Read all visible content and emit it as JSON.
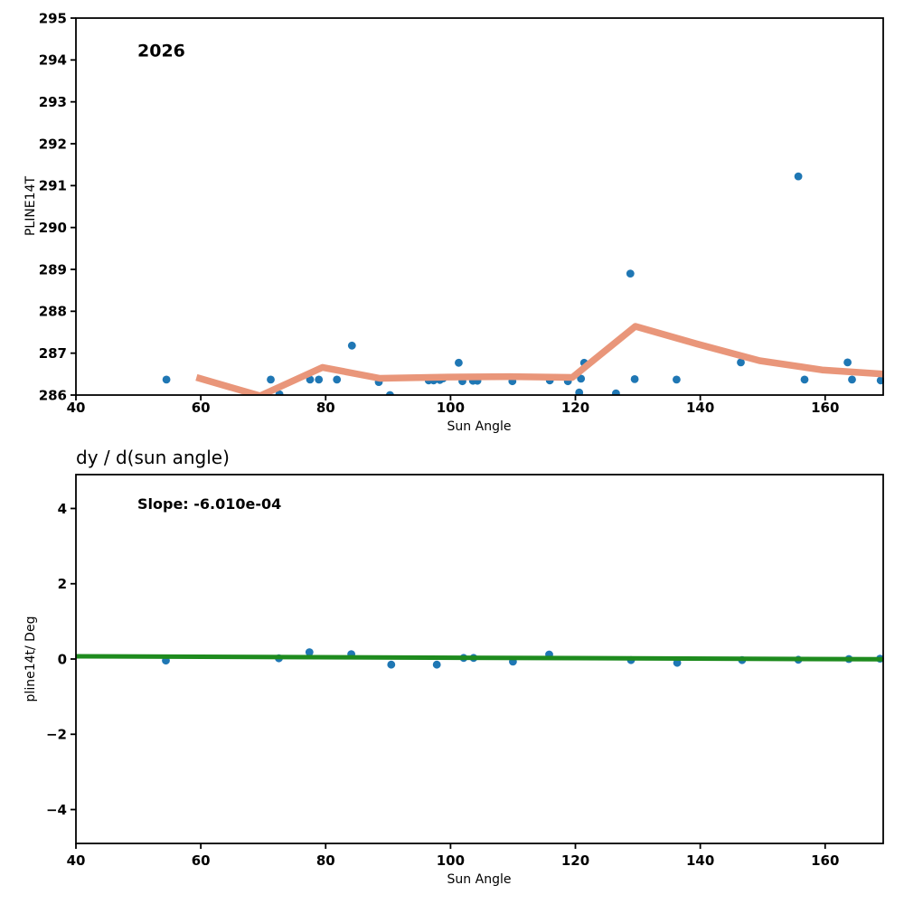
{
  "figure": {
    "background": "#ffffff",
    "text_color": "#000000"
  },
  "chart_data": [
    {
      "type": "scatter",
      "panel": "top",
      "annotation": "2026",
      "xlabel": "Sun Angle",
      "ylabel": "PLINE14T",
      "xlim": [
        40,
        169.3
      ],
      "ylim": [
        286,
        295
      ],
      "xticks": [
        40,
        60,
        80,
        100,
        120,
        140,
        160
      ],
      "yticks": [
        286,
        287,
        288,
        289,
        290,
        291,
        292,
        293,
        294,
        295
      ],
      "grid": false,
      "legend": "none",
      "series": [
        {
          "name": "pline14t-scatter",
          "type": "scatter",
          "color": "#1f77b4",
          "marker_radius": 4.4,
          "points": [
            [
              54.5,
              286.37
            ],
            [
              71.2,
              286.37
            ],
            [
              72.6,
              286.02
            ],
            [
              77.5,
              286.37
            ],
            [
              78.9,
              286.37
            ],
            [
              81.8,
              286.37
            ],
            [
              84.2,
              287.18
            ],
            [
              88.5,
              286.31
            ],
            [
              90.3,
              286.0
            ],
            [
              96.5,
              286.35
            ],
            [
              97.3,
              286.35
            ],
            [
              98.3,
              286.36
            ],
            [
              98.8,
              286.4
            ],
            [
              101.3,
              286.77
            ],
            [
              101.9,
              286.33
            ],
            [
              103.6,
              286.34
            ],
            [
              104.3,
              286.34
            ],
            [
              109.9,
              286.33
            ],
            [
              115.9,
              286.35
            ],
            [
              118.8,
              286.33
            ],
            [
              120.6,
              286.06
            ],
            [
              120.9,
              286.39
            ],
            [
              121.4,
              286.77
            ],
            [
              126.5,
              286.04
            ],
            [
              128.8,
              288.9
            ],
            [
              129.5,
              286.38
            ],
            [
              136.2,
              286.37
            ],
            [
              146.5,
              286.78
            ],
            [
              155.7,
              291.22
            ],
            [
              156.7,
              286.37
            ],
            [
              163.6,
              286.78
            ],
            [
              164.3,
              286.37
            ],
            [
              168.9,
              286.35
            ]
          ]
        },
        {
          "name": "binned-trend-line",
          "type": "line",
          "color": "#e9967a",
          "line_width": 7.5,
          "points": [
            [
              59.3,
              286.42
            ],
            [
              69.5,
              285.98
            ],
            [
              79.5,
              286.66
            ],
            [
              88.7,
              286.4
            ],
            [
              99.5,
              286.43
            ],
            [
              109.5,
              286.44
            ],
            [
              119.5,
              286.42
            ],
            [
              129.6,
              287.64
            ],
            [
              139.5,
              287.22
            ],
            [
              149.5,
              286.82
            ],
            [
              159.5,
              286.6
            ],
            [
              169.3,
              286.5
            ]
          ]
        }
      ]
    },
    {
      "type": "scatter",
      "panel": "bottom",
      "title": "dy / d(sun angle)",
      "annotation": "Slope: -6.010e-04",
      "xlabel": "Sun Angle",
      "ylabel": "pline14t/ Deg",
      "xlim": [
        40,
        169.3
      ],
      "ylim": [
        -4.9,
        4.9
      ],
      "xticks": [
        40,
        60,
        80,
        100,
        120,
        140,
        160
      ],
      "yticks": [
        -4,
        -2,
        0,
        2,
        4
      ],
      "grid": false,
      "legend": "none",
      "series": [
        {
          "name": "derivative-scatter",
          "type": "scatter",
          "color": "#1f77b4",
          "marker_radius": 4.4,
          "points": [
            [
              54.4,
              -0.04
            ],
            [
              72.5,
              0.02
            ],
            [
              77.4,
              0.18
            ],
            [
              84.1,
              0.13
            ],
            [
              90.5,
              -0.15
            ],
            [
              97.8,
              -0.15
            ],
            [
              102.1,
              0.03
            ],
            [
              103.7,
              0.03
            ],
            [
              110.0,
              -0.07
            ],
            [
              115.8,
              0.12
            ],
            [
              128.9,
              -0.03
            ],
            [
              136.3,
              -0.1
            ],
            [
              146.7,
              -0.03
            ],
            [
              155.7,
              -0.02
            ],
            [
              163.8,
              0.0
            ],
            [
              168.8,
              0.01
            ]
          ]
        },
        {
          "name": "linear-fit-line",
          "type": "line",
          "color": "#1e8b1e",
          "line_width": 5,
          "points": [
            [
              40,
              0.071
            ],
            [
              169.3,
              -0.007
            ]
          ]
        }
      ]
    }
  ]
}
